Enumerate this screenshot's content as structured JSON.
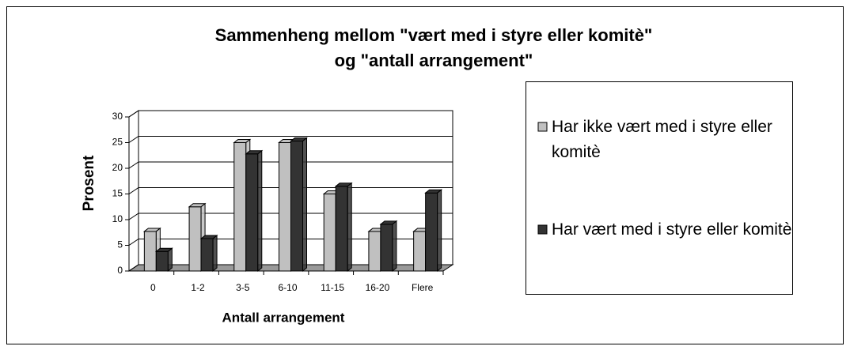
{
  "chart_data": {
    "type": "bar3d",
    "title": "Sammenheng mellom \"vært med i styre eller komitè\"",
    "subtitle": "og \"antall arrangement\"",
    "x_label": "Antall arrangement",
    "y_label": "Prosent",
    "categories": [
      "0",
      "1-2",
      "3-5",
      "6-10",
      "11-15",
      "16-20",
      "Flere"
    ],
    "series": [
      {
        "name": "Har ikke vært med i styre eller komitè",
        "color": "#c0c0c0",
        "values": [
          7.7,
          12.5,
          25,
          25,
          15,
          7.7,
          7.7
        ]
      },
      {
        "name": "Har vært med i styre eller komitè",
        "color": "#333333",
        "values": [
          3.8,
          6.3,
          22.8,
          25.3,
          16.5,
          9.1,
          15.2
        ]
      }
    ],
    "ylim": [
      0,
      30
    ],
    "yticks": [
      0,
      5,
      10,
      15,
      20,
      25,
      30
    ],
    "grid": true
  }
}
